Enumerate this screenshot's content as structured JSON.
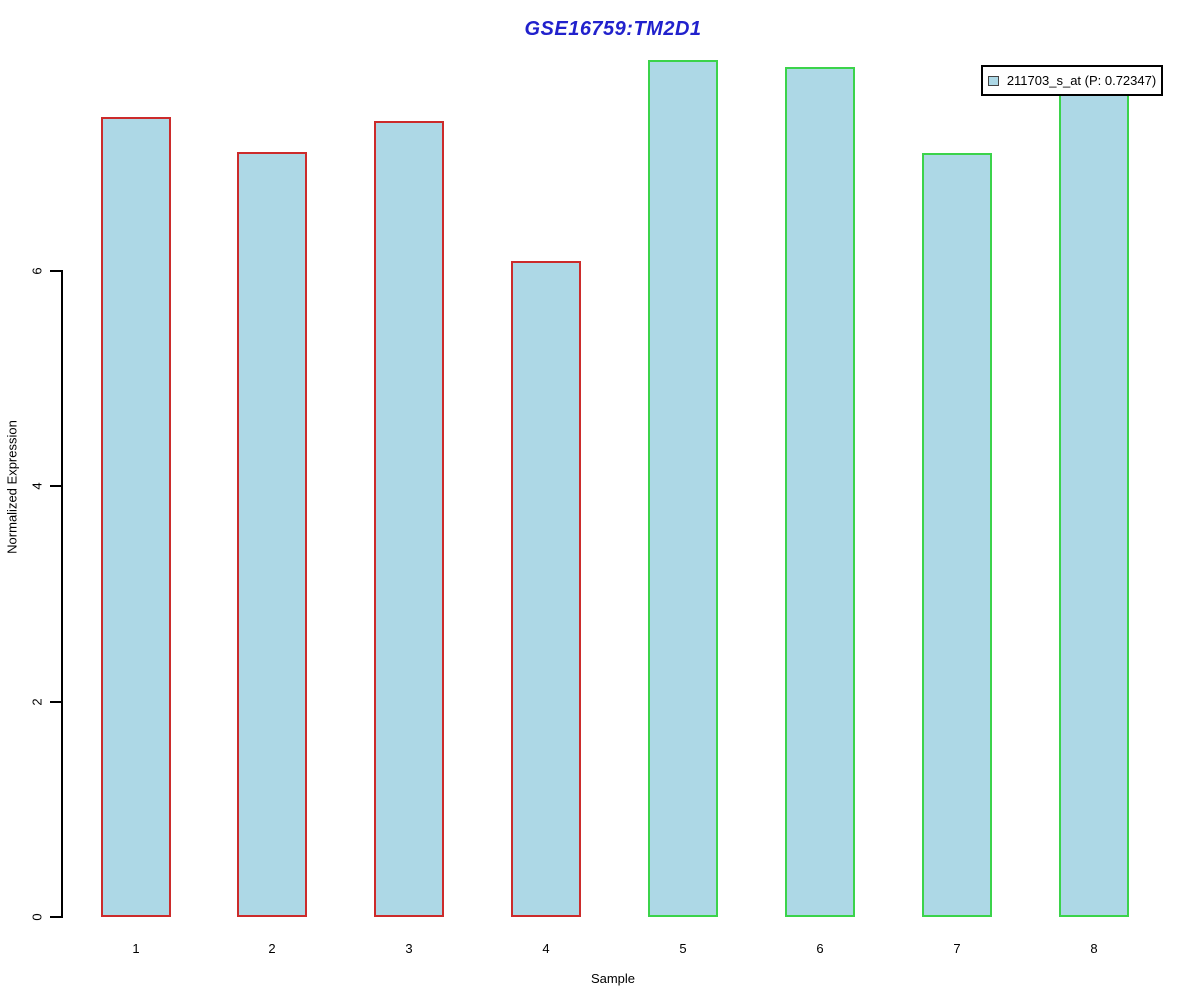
{
  "page": {
    "background": "#ffffff"
  },
  "chart": {
    "title": "GSE16759:TM2D1",
    "title_color": "#2121cc",
    "xlabel": "Sample",
    "ylabel": "Normalized Expression"
  },
  "legend": {
    "label": "211703_s_at (P: 0.72347)",
    "swatch_fill": "#add8e6",
    "swatch_icon": "legend-swatch-square"
  },
  "chart_data": {
    "type": "bar",
    "title": "GSE16759:TM2D1",
    "xlabel": "Sample",
    "ylabel": "Normalized Expression",
    "categories": [
      "1",
      "2",
      "3",
      "4",
      "5",
      "6",
      "7",
      "8"
    ],
    "values": [
      7.43,
      7.1,
      7.39,
      6.09,
      7.96,
      7.89,
      7.09,
      7.91
    ],
    "bar_fill": "#add8e6",
    "bar_edge_colors": [
      "#cc2b2b",
      "#cc2b2b",
      "#cc2b2b",
      "#cc2b2b",
      "#3bd34b",
      "#3bd34b",
      "#3bd34b",
      "#3bd34b"
    ],
    "group_edge_legend": {
      "red_group_samples": [
        "1",
        "2",
        "3",
        "4"
      ],
      "green_group_samples": [
        "5",
        "6",
        "7",
        "8"
      ]
    },
    "yticks": [
      0,
      2,
      4,
      6
    ],
    "ylim": [
      0,
      8
    ],
    "grid": false,
    "legend_position": "top-right",
    "legend_entries": [
      "211703_s_at (P: 0.72347)"
    ]
  }
}
